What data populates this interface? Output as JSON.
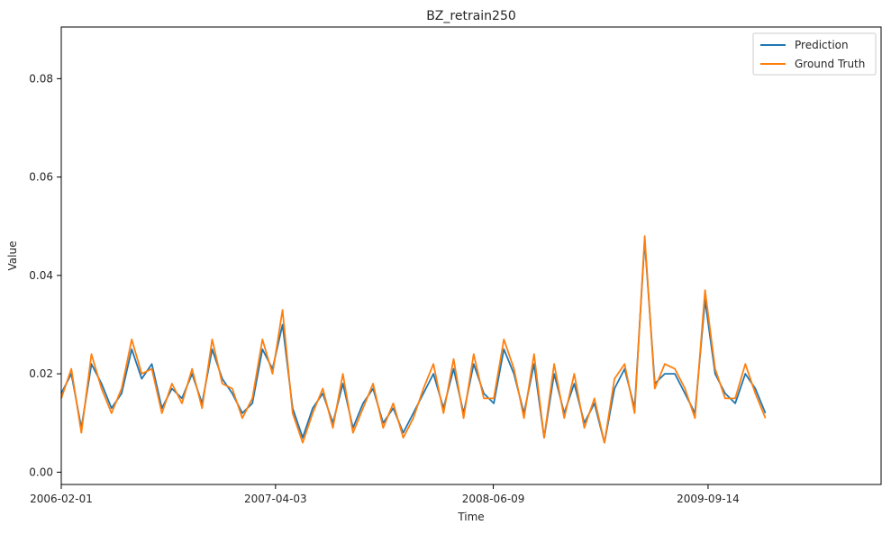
{
  "chart_data": {
    "type": "line",
    "title": "BZ_retrain250",
    "xlabel": "Time",
    "ylabel": "Value",
    "xlim": [
      0,
      1630
    ],
    "ylim": [
      -0.0025,
      0.0905
    ],
    "x_ticks": [
      {
        "value": 0,
        "label": "2006-02-01"
      },
      {
        "value": 426,
        "label": "2007-04-03"
      },
      {
        "value": 859,
        "label": "2008-06-09"
      },
      {
        "value": 1286,
        "label": "2009-09-14"
      }
    ],
    "y_ticks": [
      {
        "value": 0.0,
        "label": "0.00"
      },
      {
        "value": 0.02,
        "label": "0.02"
      },
      {
        "value": 0.04,
        "label": "0.04"
      },
      {
        "value": 0.06,
        "label": "0.06"
      },
      {
        "value": 0.08,
        "label": "0.08"
      }
    ],
    "legend_position": "top-right",
    "series": [
      {
        "name": "Prediction",
        "color": "#1f77b4",
        "x": [
          0,
          20,
          40,
          60,
          80,
          100,
          120,
          140,
          160,
          180,
          200,
          220,
          240,
          260,
          280,
          300,
          320,
          340,
          360,
          380,
          400,
          420,
          440,
          460,
          480,
          500,
          520,
          540,
          560,
          580,
          600,
          620,
          640,
          660,
          680,
          700,
          720,
          740,
          760,
          780,
          800,
          820,
          840,
          860,
          880,
          900,
          920,
          940,
          960,
          980,
          1000,
          1020,
          1040,
          1060,
          1080,
          1100,
          1120,
          1140,
          1160,
          1180,
          1200,
          1220,
          1240,
          1260,
          1280,
          1300,
          1320,
          1340,
          1360,
          1380,
          1400
        ],
        "values": [
          0.016,
          0.02,
          0.009,
          0.022,
          0.018,
          0.013,
          0.016,
          0.025,
          0.019,
          0.022,
          0.013,
          0.017,
          0.015,
          0.02,
          0.014,
          0.025,
          0.019,
          0.016,
          0.012,
          0.014,
          0.025,
          0.021,
          0.03,
          0.013,
          0.007,
          0.013,
          0.016,
          0.01,
          0.018,
          0.009,
          0.014,
          0.017,
          0.01,
          0.013,
          0.008,
          0.012,
          0.016,
          0.02,
          0.013,
          0.021,
          0.012,
          0.022,
          0.016,
          0.014,
          0.025,
          0.02,
          0.012,
          0.022,
          0.007,
          0.02,
          0.012,
          0.018,
          0.01,
          0.014,
          0.006,
          0.017,
          0.021,
          0.013,
          0.047,
          0.018,
          0.02,
          0.02,
          0.016,
          0.012,
          0.035,
          0.02,
          0.016,
          0.014,
          0.02,
          0.017,
          0.012
        ]
      },
      {
        "name": "Ground Truth",
        "color": "#ff7f0e",
        "x": [
          0,
          20,
          40,
          60,
          80,
          100,
          120,
          140,
          160,
          180,
          200,
          220,
          240,
          260,
          280,
          300,
          320,
          340,
          360,
          380,
          400,
          420,
          440,
          460,
          480,
          500,
          520,
          540,
          560,
          580,
          600,
          620,
          640,
          660,
          680,
          700,
          720,
          740,
          760,
          780,
          800,
          820,
          840,
          860,
          880,
          900,
          920,
          940,
          960,
          980,
          1000,
          1020,
          1040,
          1060,
          1080,
          1100,
          1120,
          1140,
          1160,
          1180,
          1200,
          1220,
          1240,
          1260,
          1280,
          1300,
          1320,
          1340,
          1360,
          1380,
          1400
        ],
        "values": [
          0.015,
          0.021,
          0.008,
          0.024,
          0.017,
          0.012,
          0.017,
          0.027,
          0.02,
          0.021,
          0.012,
          0.018,
          0.014,
          0.021,
          0.013,
          0.027,
          0.018,
          0.017,
          0.011,
          0.015,
          0.027,
          0.02,
          0.033,
          0.012,
          0.006,
          0.012,
          0.017,
          0.009,
          0.02,
          0.008,
          0.013,
          0.018,
          0.009,
          0.014,
          0.007,
          0.011,
          0.017,
          0.022,
          0.012,
          0.023,
          0.011,
          0.024,
          0.015,
          0.015,
          0.027,
          0.021,
          0.011,
          0.024,
          0.007,
          0.022,
          0.011,
          0.02,
          0.009,
          0.015,
          0.006,
          0.019,
          0.022,
          0.012,
          0.048,
          0.017,
          0.022,
          0.021,
          0.017,
          0.011,
          0.037,
          0.021,
          0.015,
          0.015,
          0.022,
          0.016,
          0.011
        ]
      }
    ]
  }
}
